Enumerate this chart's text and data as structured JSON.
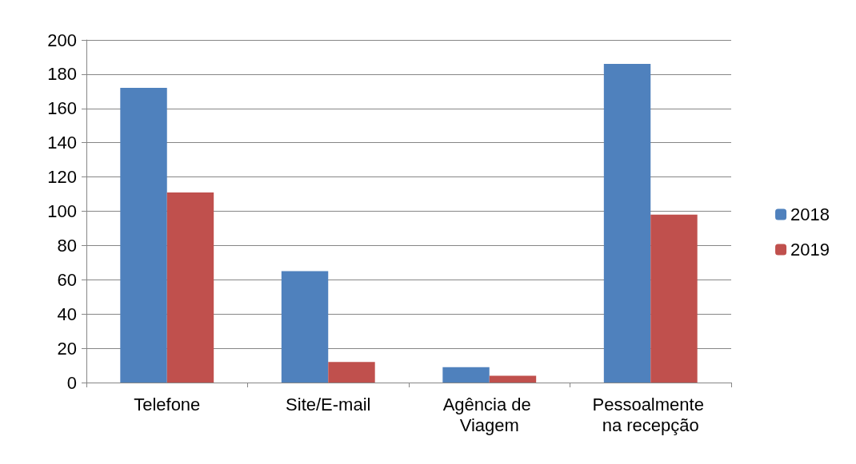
{
  "chart_data": {
    "type": "bar",
    "categories": [
      "Telefone",
      "Site/E-mail",
      "Agência de Viagem",
      "Pessoalmente na recepção"
    ],
    "series": [
      {
        "name": "2018",
        "color": "#4f81bd",
        "values": [
          172,
          65,
          9,
          186
        ]
      },
      {
        "name": "2019",
        "color": "#c0504d",
        "values": [
          111,
          12,
          4,
          98
        ]
      }
    ],
    "ylim": [
      0,
      200
    ],
    "yticks": [
      0,
      20,
      40,
      60,
      80,
      100,
      120,
      140,
      160,
      180,
      200
    ],
    "grid": "y",
    "legend": "right"
  }
}
